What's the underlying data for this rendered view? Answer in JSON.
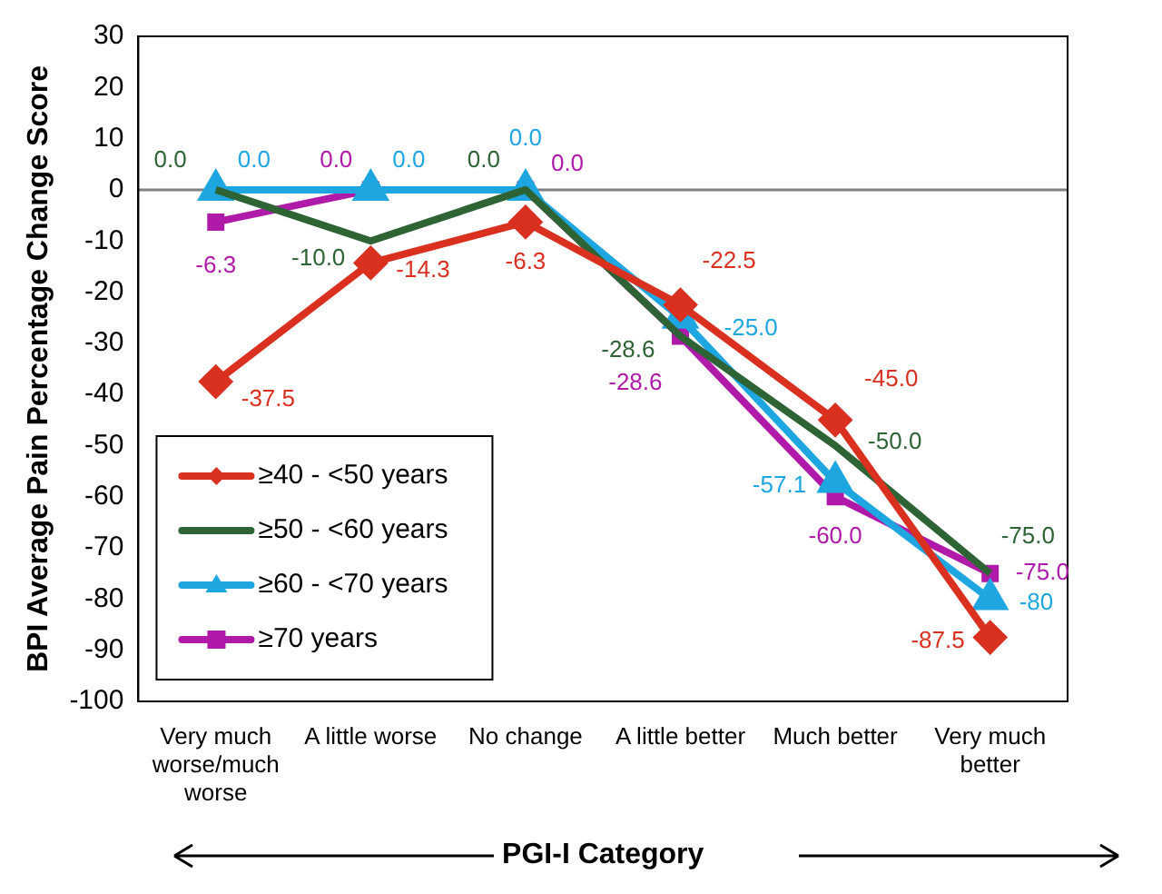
{
  "chart_data": {
    "type": "line",
    "ylabel": "BPI Average Pain Percentage Change Score",
    "xlabel": "PGI-I Category",
    "categories": [
      "Very much worse/much worse",
      "A little worse",
      "No change",
      "A little better",
      "Much better",
      "Very much better"
    ],
    "ylim": [
      -100,
      30
    ],
    "yticks": [
      -100,
      -90,
      -80,
      -70,
      -60,
      -50,
      -40,
      -30,
      -20,
      -10,
      0,
      10,
      20,
      30
    ],
    "grid": false,
    "legend": "bottom left",
    "line_style": "solid",
    "ref_lines": [
      {
        "axis": "y",
        "value": 0,
        "color": "#808080"
      }
    ],
    "series": [
      {
        "name": "≥40 - <50 years",
        "color": "#d93020",
        "marker": "diamond",
        "values": [
          -37.5,
          -14.3,
          -6.3,
          -22.5,
          -45.0,
          -87.5
        ],
        "value_labels": [
          "-37.5",
          "-14.3",
          "-6.3",
          "-22.5",
          "-45.0",
          "-87.5"
        ]
      },
      {
        "name": "≥50 - <60 years",
        "color": "#2e6435",
        "values": [
          0.0,
          -10.0,
          0.0,
          -28.6,
          -50.0,
          -75.0
        ],
        "value_labels": [
          "0.0",
          "-10.0",
          "0.0",
          "-28.6",
          "-50.0",
          "-75.0"
        ]
      },
      {
        "name": "≥60 - <70 years",
        "color": "#1ea6e0",
        "marker": "triangle",
        "values": [
          0.0,
          0.0,
          0.0,
          -25.0,
          -57.1,
          -80
        ],
        "value_labels": [
          "0.0",
          "0.0",
          "0.0",
          "-25.0",
          "-57.1",
          "-80"
        ]
      },
      {
        "name": "≥70 years",
        "color": "#b01aa8",
        "marker": "square",
        "values": [
          -6.3,
          0.0,
          0.0,
          -28.6,
          -60.0,
          -75.0
        ],
        "value_labels": [
          "-6.3",
          "0.0",
          "0.0",
          "-28.6",
          "-60.0",
          "-75.0"
        ]
      }
    ]
  }
}
